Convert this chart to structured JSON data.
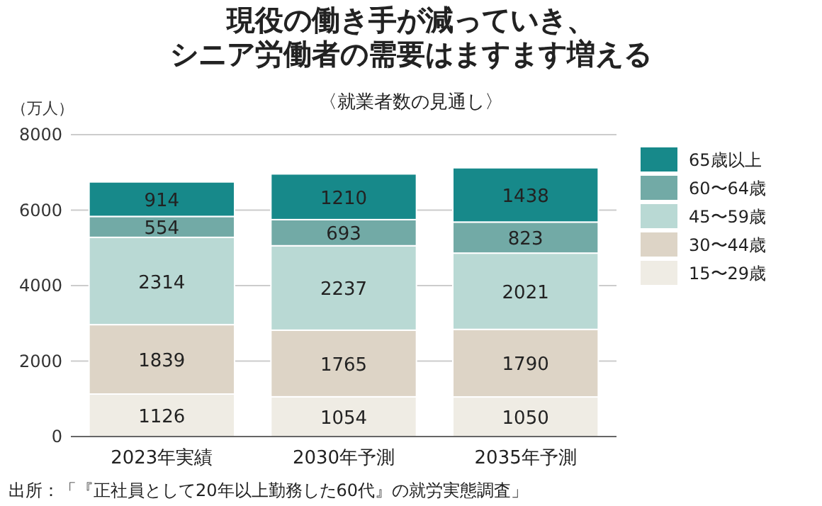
{
  "chart_data": {
    "type": "bar",
    "title": "現役の働き手が減っていき、シニア労働者の需要はますます増える",
    "subtitle": "〈就業者数の見通し〉",
    "ylabel": "（万人）",
    "categories": [
      "2023年実績",
      "2030年予測",
      "2035年予測"
    ],
    "stacked": true,
    "data_labels": true,
    "grid": "y",
    "legend": "right",
    "ylim": [
      0,
      8000
    ],
    "yticks": [
      0,
      2000,
      4000,
      6000,
      8000
    ],
    "series": [
      {
        "name": "15〜29歳",
        "color": "#efece4",
        "values": [
          1126,
          1054,
          1050
        ]
      },
      {
        "name": "30〜44歳",
        "color": "#ddd4c6",
        "values": [
          1839,
          1765,
          1790
        ]
      },
      {
        "name": "45〜59歳",
        "color": "#b9d9d4",
        "values": [
          2314,
          2237,
          2021
        ]
      },
      {
        "name": "60〜64歳",
        "color": "#72aaa6",
        "values": [
          554,
          693,
          823
        ]
      },
      {
        "name": "65歳以上",
        "color": "#17898a",
        "values": [
          914,
          1210,
          1438
        ]
      }
    ],
    "annotations": [
      "出所：「『正社員として20年以上勤務した60代』の就労実態調査」"
    ]
  }
}
